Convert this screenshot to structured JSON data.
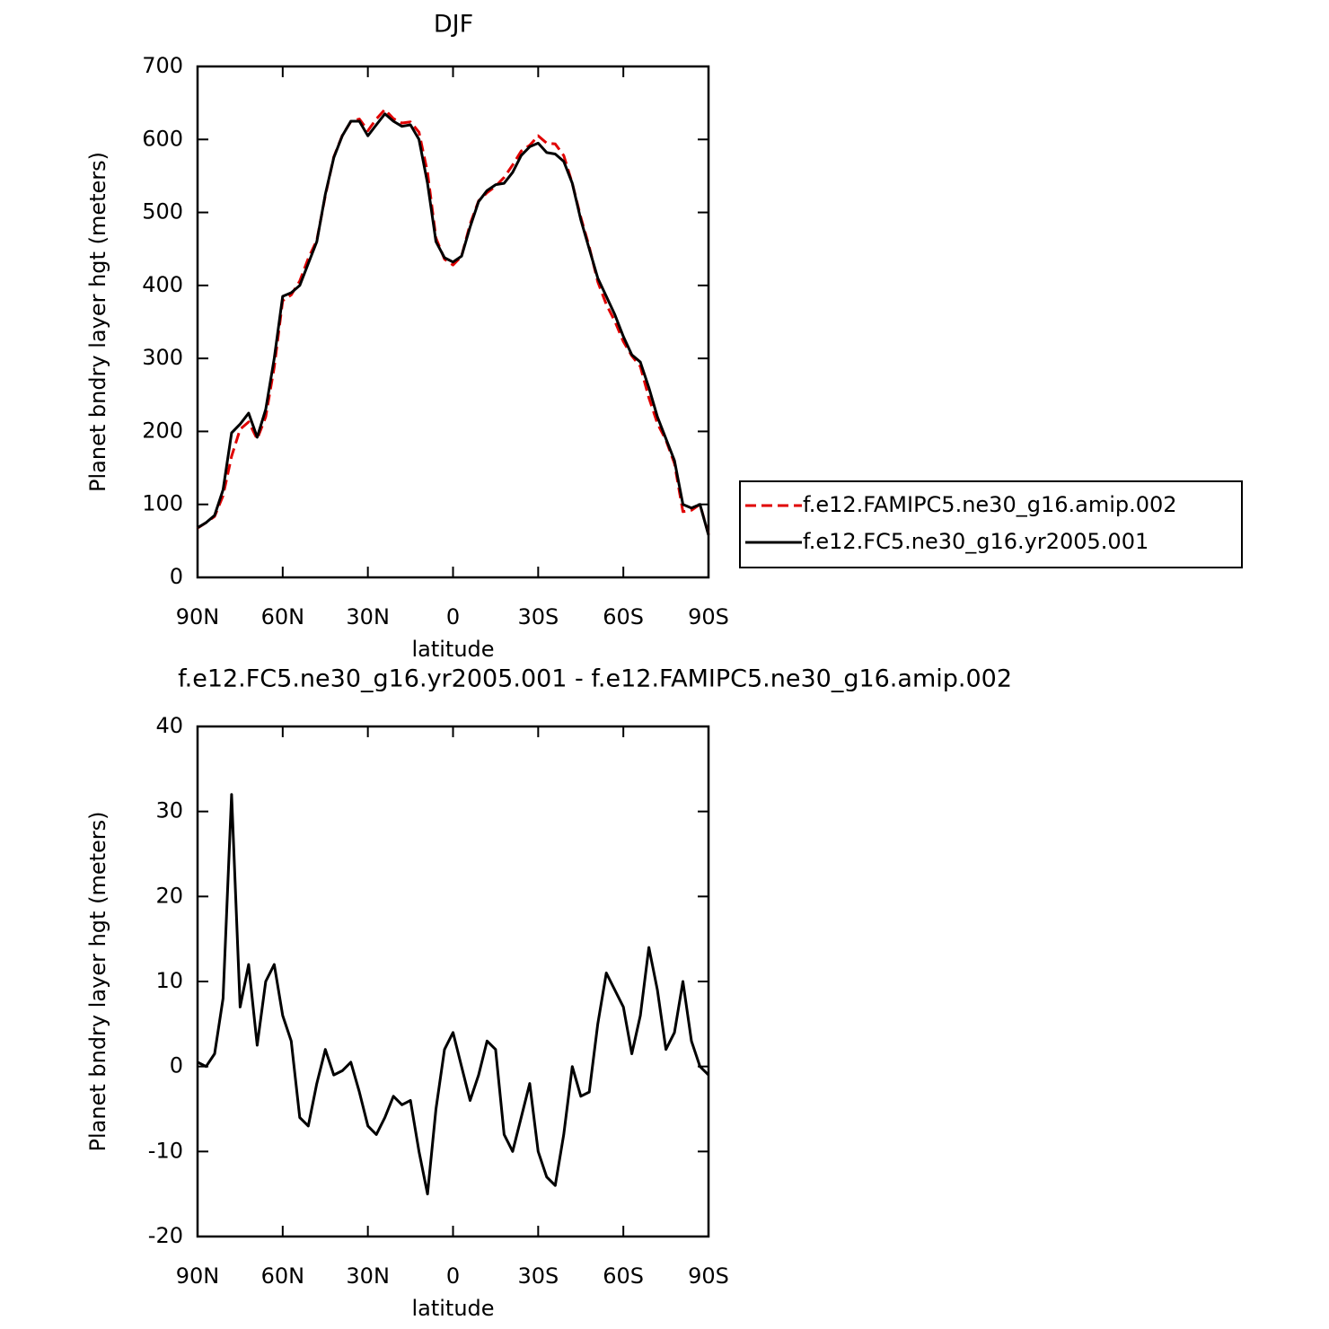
{
  "chart_data": [
    {
      "type": "line",
      "title": "DJF",
      "xlabel": "latitude",
      "ylabel": "Planet bndry layer hgt (meters)",
      "x": [
        90,
        87,
        84,
        81,
        78,
        75,
        72,
        69,
        66,
        63,
        60,
        57,
        54,
        51,
        48,
        45,
        42,
        39,
        36,
        33,
        30,
        27,
        24,
        21,
        18,
        15,
        12,
        9,
        6,
        3,
        0,
        -3,
        -6,
        -9,
        -12,
        -15,
        -18,
        -21,
        -24,
        -27,
        -30,
        -33,
        -36,
        -39,
        -42,
        -45,
        -48,
        -51,
        -54,
        -57,
        -60,
        -63,
        -66,
        -69,
        -72,
        -75,
        -78,
        -81,
        -84,
        -87,
        -90
      ],
      "series": [
        {
          "name": "f.e12.FAMIPC5.ne30_g16.amip.002",
          "color": "#e00000",
          "dashed": true,
          "values": [
            67.5,
            75,
            83.5,
            112,
            166,
            203,
            213,
            189.5,
            220,
            288,
            379,
            387,
            406,
            437,
            462,
            523,
            576,
            605.5,
            624.5,
            628,
            612,
            628,
            641,
            628.5,
            622.5,
            624,
            610,
            555,
            465,
            436,
            428,
            440,
            484,
            516,
            527,
            536,
            548,
            565,
            584,
            592,
            605,
            595,
            594,
            578,
            540,
            493.5,
            453,
            405,
            374,
            351,
            323,
            303.5,
            289,
            246,
            211,
            188,
            156,
            90,
            92,
            100,
            59
          ]
        },
        {
          "name": "f.e12.FC5.ne30_g16.yr2005.001",
          "color": "#000000",
          "dashed": false,
          "values": [
            68,
            75,
            85,
            120,
            198,
            210,
            225,
            192,
            230,
            300,
            385,
            390,
            400,
            430,
            460,
            525,
            575,
            605,
            625,
            625,
            605,
            620,
            635,
            625,
            618,
            620,
            600,
            540,
            460,
            438,
            432,
            440,
            480,
            515,
            530,
            538,
            540,
            555,
            578,
            590,
            595,
            582,
            580,
            570,
            540,
            490,
            450,
            410,
            385,
            360,
            330,
            305,
            295,
            260,
            220,
            190,
            160,
            100,
            95,
            100,
            58
          ]
        }
      ],
      "xlim": [
        90,
        -90
      ],
      "xticks": [
        {
          "value": 90,
          "label": "90N"
        },
        {
          "value": 60,
          "label": "60N"
        },
        {
          "value": 30,
          "label": "30N"
        },
        0,
        {
          "value": -30,
          "label": "30S"
        },
        {
          "value": -60,
          "label": "60S"
        },
        {
          "value": -90,
          "label": "90S"
        }
      ],
      "ylim": [
        0,
        700
      ],
      "yticks": [
        0,
        100,
        200,
        300,
        400,
        500,
        600,
        700
      ],
      "legend": "right"
    },
    {
      "type": "line",
      "title": "f.e12.FC5.ne30_g16.yr2005.001 - f.e12.FAMIPC5.ne30_g16.amip.002",
      "xlabel": "latitude",
      "ylabel": "Planet bndry layer hgt (meters)",
      "x": [
        90,
        87,
        84,
        81,
        78,
        75,
        72,
        69,
        66,
        63,
        60,
        57,
        54,
        51,
        48,
        45,
        42,
        39,
        36,
        33,
        30,
        27,
        24,
        21,
        18,
        15,
        12,
        9,
        6,
        3,
        0,
        -3,
        -6,
        -9,
        -12,
        -15,
        -18,
        -21,
        -24,
        -27,
        -30,
        -33,
        -36,
        -39,
        -42,
        -45,
        -48,
        -51,
        -54,
        -57,
        -60,
        -63,
        -66,
        -69,
        -72,
        -75,
        -78,
        -81,
        -84,
        -87,
        -90
      ],
      "color": "#000000",
      "values": [
        0.5,
        0,
        1.5,
        8,
        32,
        7,
        12,
        2.5,
        10,
        12,
        6,
        3,
        -6,
        -7,
        -2,
        2,
        -1,
        -0.5,
        0.5,
        -3,
        -7,
        -8,
        -6,
        -3.5,
        -4.5,
        -4,
        -10,
        -15,
        -5,
        2,
        4,
        0,
        -4,
        -1,
        3,
        2,
        -8,
        -10,
        -6,
        -2,
        -10,
        -13,
        -14,
        -8,
        0,
        -3.5,
        -3,
        5,
        11,
        9,
        7,
        1.5,
        6,
        14,
        9,
        2,
        4,
        10,
        3,
        0,
        -1
      ],
      "xlim": [
        90,
        -90
      ],
      "xticks": [
        {
          "value": 90,
          "label": "90N"
        },
        {
          "value": 60,
          "label": "60N"
        },
        {
          "value": 30,
          "label": "30N"
        },
        0,
        {
          "value": -30,
          "label": "30S"
        },
        {
          "value": -60,
          "label": "60S"
        },
        {
          "value": -90,
          "label": "90S"
        }
      ],
      "ylim": [
        -20,
        40
      ],
      "yticks": [
        -20,
        -10,
        0,
        10,
        20,
        30,
        40
      ]
    }
  ]
}
